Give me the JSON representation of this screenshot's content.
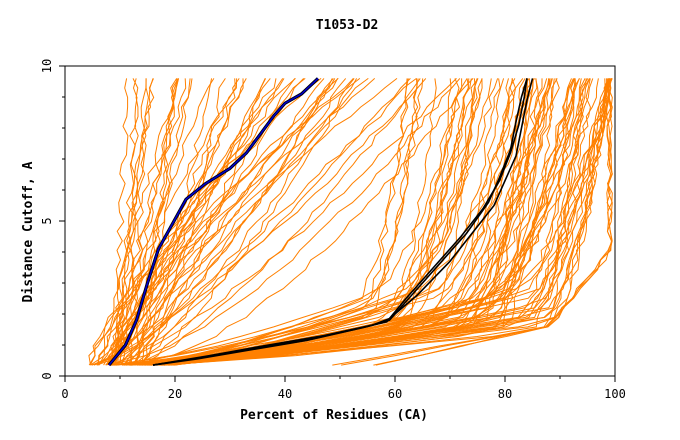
{
  "chart_data": {
    "type": "line",
    "title": "T1053-D2",
    "xlabel": "Percent of Residues (CA)",
    "ylabel": "Distance Cutoff, A",
    "xlim": [
      0,
      100
    ],
    "ylim": [
      0,
      10
    ],
    "x_ticks": [
      "0",
      "20",
      "40",
      "60",
      "80",
      "100"
    ],
    "y_ticks": [
      "0",
      "5",
      "10"
    ],
    "grid": false,
    "legend": "none",
    "colors": {
      "background": "#ffffff",
      "model_lines": "#ff8000",
      "highlight_black": "#000000",
      "highlight_blue": "#0000cc"
    },
    "series": [
      {
        "role": "highlight-black-1",
        "x": [
          16,
          25,
          35,
          45,
          55,
          59,
          63,
          68,
          73,
          77,
          79,
          81,
          82,
          83,
          84
        ],
        "y": [
          0.35,
          0.6,
          0.9,
          1.2,
          1.6,
          1.8,
          2.6,
          3.6,
          4.6,
          5.6,
          6.4,
          7.3,
          8.2,
          9.0,
          9.6
        ]
      },
      {
        "role": "highlight-black-2",
        "x": [
          16,
          26,
          37,
          47,
          56,
          59,
          64,
          70,
          74,
          78,
          80,
          82,
          83,
          84,
          85
        ],
        "y": [
          0.35,
          0.65,
          1.0,
          1.3,
          1.65,
          1.85,
          2.6,
          3.7,
          4.6,
          5.5,
          6.3,
          7.1,
          8.0,
          8.9,
          9.6
        ]
      },
      {
        "role": "highlight-black-3",
        "x": [
          16,
          24,
          34,
          44,
          54,
          58.5,
          62,
          67,
          72,
          76,
          79,
          81,
          82.5,
          83.5,
          84
        ],
        "y": [
          0.35,
          0.55,
          0.85,
          1.15,
          1.55,
          1.75,
          2.5,
          3.5,
          4.5,
          5.4,
          6.3,
          7.2,
          8.1,
          9.0,
          9.6
        ]
      },
      {
        "role": "highlight-blue",
        "x": [
          8,
          11,
          13,
          15,
          17,
          19.5,
          22,
          25.5,
          30,
          33,
          35.5,
          38,
          40,
          43,
          46
        ],
        "y": [
          0.35,
          1.0,
          1.8,
          3.0,
          4.1,
          4.9,
          5.7,
          6.2,
          6.7,
          7.2,
          7.8,
          8.4,
          8.8,
          9.1,
          9.6
        ]
      }
    ]
  }
}
